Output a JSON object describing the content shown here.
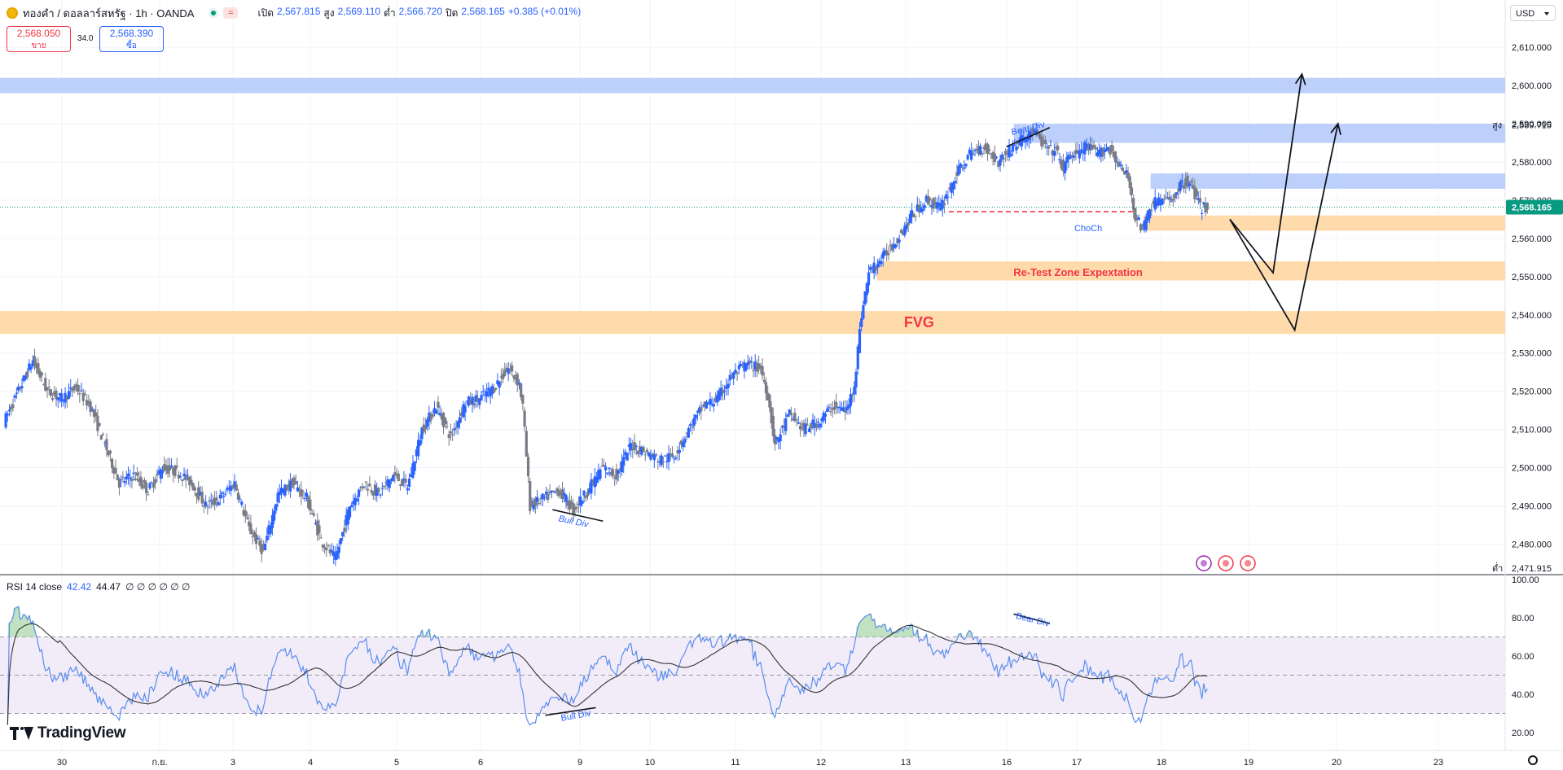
{
  "header": {
    "symbol_title": "ทองคำ / ดอลลาร์สหรัฐ · 1h · OANDA",
    "flag_label": "=",
    "open_label": "เปิด",
    "open_value": "2,567.815",
    "high_label": "สูง",
    "high_value": "2,569.110",
    "low_label": "ต่ำ",
    "low_value": "2,566.720",
    "close_label": "ปิด",
    "close_value": "2,568.165",
    "change_value": "+0.385 (+0.01%)",
    "sell_price": "2,568.050",
    "sell_label": "ขาย",
    "spread": "34.0",
    "buy_price": "2,568.390",
    "buy_label": "ซื้อ"
  },
  "currency": "USD",
  "rsi_legend": {
    "name": "RSI 14 close",
    "value1": "42.42",
    "value2": "44.47",
    "placeholders": "∅ ∅ ∅ ∅ ∅ ∅"
  },
  "brand": "TradingView",
  "colors": {
    "up": "#2962ff",
    "down": "#787b86",
    "supply_zone": "#b2c8fb",
    "demand_zone": "#ffd9a8",
    "annotation": "#2962ff",
    "choch_line": "#f23645",
    "fvg_text": "#f23645",
    "last_price": "#089981",
    "rsi_line": "#5b8def",
    "rsi_ma": "#333333",
    "rsi_band": "#ede7f6"
  },
  "chart_data": [
    {
      "type": "candlestick",
      "instrument": "ทองคำ / ดอลลาร์สหรัฐ",
      "timeframe": "1h",
      "y_ticks": [
        "2,610.000",
        "2,600.000",
        "2,590.000",
        "2,580.000",
        "2,570.000",
        "2,560.000",
        "2,550.000",
        "2,540.000",
        "2,530.000",
        "2,520.000",
        "2,510.000",
        "2,500.000",
        "2,490.000",
        "2,480.000"
      ],
      "ylim": [
        2472,
        2616
      ],
      "x_ticks": [
        "30",
        "ก.ย.",
        "3",
        "4",
        "5",
        "6",
        "9",
        "10",
        "11",
        "12",
        "13",
        "16",
        "17",
        "18",
        "19",
        "20",
        "23"
      ],
      "last_price": 2568.165,
      "last_price_label": "2,568.165",
      "high_marker": {
        "label": "สูง",
        "value": "2,589.715"
      },
      "low_marker": {
        "label": "ต่ำ",
        "value": "2,471.915"
      },
      "price_path": [
        [
          0,
          2512
        ],
        [
          2,
          2520
        ],
        [
          4,
          2528
        ],
        [
          6,
          2520
        ],
        [
          8,
          2518
        ],
        [
          10,
          2521
        ],
        [
          12,
          2516
        ],
        [
          14,
          2506
        ],
        [
          16,
          2496
        ],
        [
          18,
          2498
        ],
        [
          20,
          2494
        ],
        [
          22,
          2500
        ],
        [
          24,
          2499
        ],
        [
          26,
          2496
        ],
        [
          28,
          2490
        ],
        [
          30,
          2492
        ],
        [
          32,
          2496
        ],
        [
          34,
          2484
        ],
        [
          36,
          2478
        ],
        [
          38,
          2493
        ],
        [
          40,
          2496
        ],
        [
          42,
          2492
        ],
        [
          44,
          2481
        ],
        [
          46,
          2476
        ],
        [
          48,
          2490
        ],
        [
          50,
          2496
        ],
        [
          52,
          2493
        ],
        [
          54,
          2498
        ],
        [
          56,
          2495
        ],
        [
          58,
          2510
        ],
        [
          60,
          2516
        ],
        [
          62,
          2508
        ],
        [
          64,
          2517
        ],
        [
          66,
          2518
        ],
        [
          68,
          2521
        ],
        [
          70,
          2526
        ],
        [
          71.5,
          2522
        ],
        [
          72,
          2516
        ],
        [
          73,
          2490
        ],
        [
          75,
          2492
        ],
        [
          77,
          2494
        ],
        [
          79,
          2489
        ],
        [
          81,
          2494
        ],
        [
          83,
          2500
        ],
        [
          85,
          2498
        ],
        [
          87,
          2506
        ],
        [
          89,
          2504
        ],
        [
          91,
          2502
        ],
        [
          93,
          2503
        ],
        [
          95,
          2510
        ],
        [
          97,
          2516
        ],
        [
          99,
          2518
        ],
        [
          101,
          2524
        ],
        [
          103,
          2527
        ],
        [
          105,
          2526
        ],
        [
          106,
          2519
        ],
        [
          107,
          2506
        ],
        [
          109,
          2514
        ],
        [
          111,
          2510
        ],
        [
          113,
          2512
        ],
        [
          115,
          2516
        ],
        [
          117,
          2515
        ],
        [
          118,
          2522
        ],
        [
          119,
          2540
        ],
        [
          120,
          2551
        ],
        [
          122,
          2555
        ],
        [
          124,
          2560
        ],
        [
          126,
          2566
        ],
        [
          128,
          2570
        ],
        [
          130,
          2568
        ],
        [
          132,
          2576
        ],
        [
          134,
          2582
        ],
        [
          136,
          2584
        ],
        [
          138,
          2580
        ],
        [
          140,
          2584
        ],
        [
          142,
          2587
        ],
        [
          143,
          2588
        ],
        [
          144,
          2585
        ],
        [
          145,
          2583
        ],
        [
          146,
          2583
        ],
        [
          147,
          2578
        ],
        [
          148,
          2582
        ],
        [
          149,
          2582
        ],
        [
          150,
          2584
        ],
        [
          152,
          2582
        ],
        [
          153,
          2584
        ],
        [
          154,
          2582
        ],
        [
          155,
          2578
        ],
        [
          156,
          2576
        ],
        [
          157,
          2566
        ],
        [
          158,
          2562
        ],
        [
          159,
          2568
        ],
        [
          160,
          2570
        ],
        [
          161,
          2570
        ],
        [
          162,
          2570
        ],
        [
          163,
          2573
        ],
        [
          164,
          2575
        ],
        [
          165,
          2573
        ],
        [
          166,
          2568
        ],
        [
          167,
          2568
        ]
      ],
      "zones": [
        {
          "kind": "supply",
          "from": 2602,
          "to": 2598,
          "x_start": 0
        },
        {
          "kind": "supply",
          "from": 2590,
          "to": 2585,
          "x_start": 140
        },
        {
          "kind": "supply",
          "from": 2577,
          "to": 2573,
          "x_start": 159
        },
        {
          "kind": "demand",
          "from": 2566,
          "to": 2562,
          "x_start": 158
        },
        {
          "kind": "demand",
          "from": 2554,
          "to": 2549,
          "x_start": 121
        },
        {
          "kind": "demand",
          "from": 2541,
          "to": 2535,
          "x_start": 0
        }
      ],
      "choch_level": 2567,
      "annotations": [
        {
          "text": "Bear Div",
          "x": 140,
          "y": 2587
        },
        {
          "text": "Bull Div",
          "x": 77,
          "y": 2489
        },
        {
          "text": "ChoCh",
          "x": 150,
          "y": 2564
        },
        {
          "text": "Re-Test  Zone Expextation",
          "x": 149,
          "y": 2551
        },
        {
          "text": "FVG",
          "x": 125,
          "y": 2538
        }
      ],
      "projection": [
        [
          170,
          2565
        ],
        [
          176,
          2551
        ],
        [
          180,
          2603
        ]
      ],
      "projection2": [
        [
          170,
          2565
        ],
        [
          179,
          2536
        ],
        [
          185,
          2590
        ]
      ]
    },
    {
      "type": "line",
      "name": "RSI 14 close",
      "y_ticks": [
        "100.00",
        "80.00",
        "60.00",
        "40.00",
        "20.00"
      ],
      "ylim": [
        20,
        100
      ],
      "bands": [
        30,
        50,
        70
      ],
      "current": [
        42.42,
        44.47
      ],
      "annotations": [
        {
          "text": "Bear Div",
          "x": 140,
          "y": 84
        },
        {
          "text": "Bull Div",
          "x": 77,
          "y": 26
        }
      ]
    }
  ]
}
